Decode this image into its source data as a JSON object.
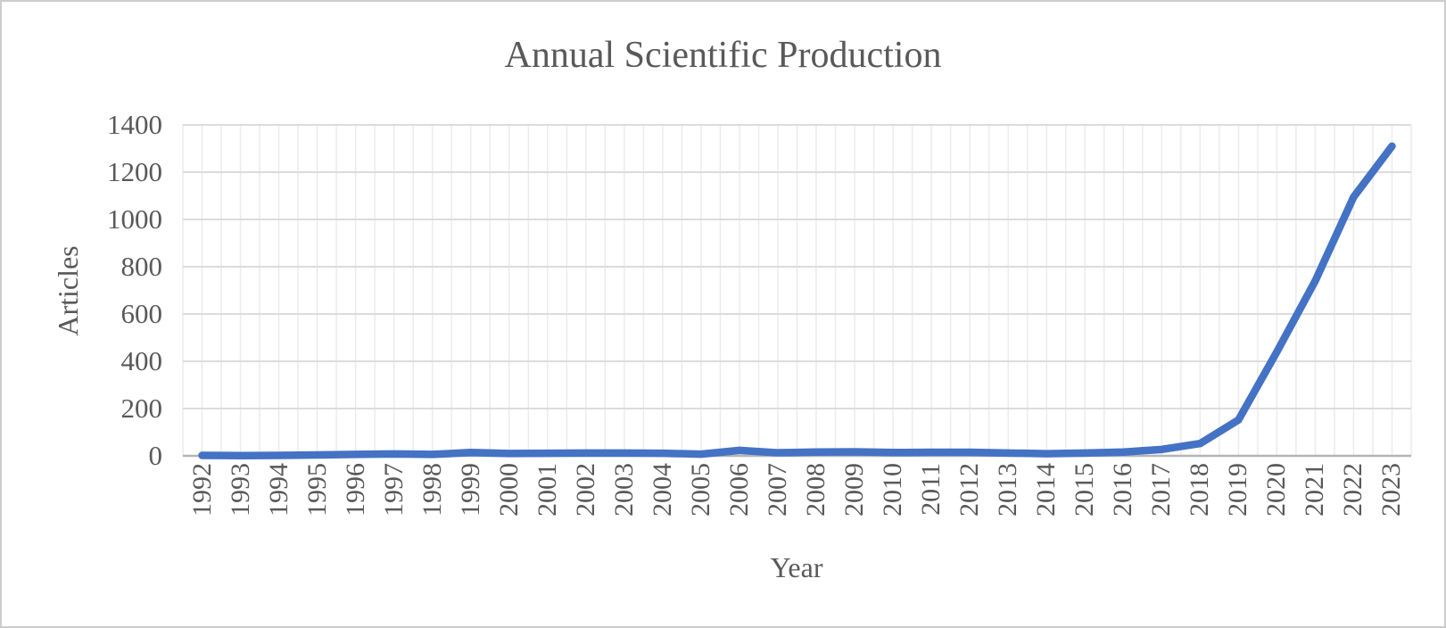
{
  "chart_data": {
    "type": "line",
    "title": "Annual Scientific Production",
    "xlabel": "Year",
    "ylabel": "Articles",
    "categories": [
      1992,
      1993,
      1994,
      1995,
      1996,
      1997,
      1998,
      1999,
      2000,
      2001,
      2002,
      2003,
      2004,
      2005,
      2006,
      2007,
      2008,
      2009,
      2010,
      2011,
      2012,
      2013,
      2014,
      2015,
      2016,
      2017,
      2018,
      2019,
      2020,
      2021,
      2022,
      2023
    ],
    "values": [
      2,
      1,
      2,
      4,
      6,
      8,
      6,
      14,
      10,
      11,
      12,
      12,
      11,
      7,
      23,
      13,
      16,
      17,
      14,
      15,
      15,
      12,
      9,
      12,
      16,
      27,
      52,
      152,
      440,
      740,
      1095,
      1310
    ],
    "ylim": [
      0,
      1400
    ],
    "yticks": [
      0,
      200,
      400,
      600,
      800,
      1000,
      1200,
      1400
    ],
    "legend_position": "none",
    "grid": {
      "horizontal": "major every 200",
      "vertical": "every half category"
    },
    "colors": {
      "line": "#4472C4",
      "horizontal_gridline": "#dcdcdc",
      "vertical_gridline": "#ebebeb",
      "axis_line": "#b5b5b5",
      "text": "#595959"
    }
  }
}
